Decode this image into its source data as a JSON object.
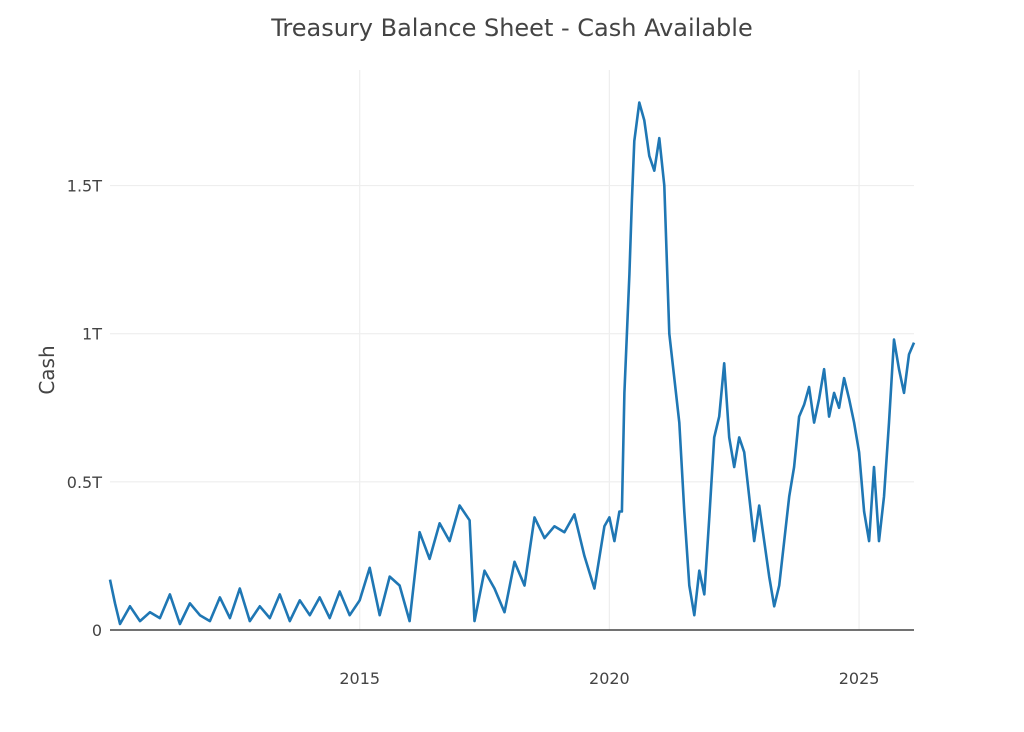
{
  "chart_data": {
    "type": "line",
    "title": "Treasury Balance Sheet - Cash Available",
    "xlabel": "",
    "ylabel": "Cash",
    "xlim": [
      2010.0,
      2026.1
    ],
    "ylim": [
      -0.0001,
      1.89
    ],
    "y_ticks": [
      0,
      0.5,
      1.0,
      1.5
    ],
    "y_tick_labels": [
      "0",
      "0.5T",
      "1T",
      "1.5T"
    ],
    "x_ticks": [
      2015,
      2020,
      2025
    ],
    "x_tick_labels": [
      "2015",
      "2020",
      "2025"
    ],
    "grid": true,
    "legend": "none",
    "color": "#1f77b4",
    "series": [
      {
        "x": [
          2010.0,
          2010.1,
          2010.2,
          2010.4,
          2010.6,
          2010.8,
          2011.0,
          2011.2,
          2011.4,
          2011.6,
          2011.8,
          2012.0,
          2012.2,
          2012.4,
          2012.6,
          2012.8,
          2013.0,
          2013.2,
          2013.4,
          2013.6,
          2013.8,
          2014.0,
          2014.2,
          2014.4,
          2014.6,
          2014.8,
          2015.0,
          2015.2,
          2015.4,
          2015.6,
          2015.8,
          2016.0,
          2016.2,
          2016.4,
          2016.6,
          2016.8,
          2017.0,
          2017.2,
          2017.3,
          2017.5,
          2017.7,
          2017.9,
          2018.1,
          2018.3,
          2018.5,
          2018.7,
          2018.9,
          2019.1,
          2019.3,
          2019.5,
          2019.7,
          2019.9,
          2020.0,
          2020.1,
          2020.2,
          2020.25,
          2020.3,
          2020.35,
          2020.4,
          2020.45,
          2020.5,
          2020.6,
          2020.7,
          2020.8,
          2020.9,
          2021.0,
          2021.1,
          2021.2,
          2021.3,
          2021.4,
          2021.5,
          2021.6,
          2021.7,
          2021.8,
          2021.9,
          2022.0,
          2022.1,
          2022.2,
          2022.3,
          2022.4,
          2022.5,
          2022.6,
          2022.7,
          2022.8,
          2022.9,
          2023.0,
          2023.1,
          2023.2,
          2023.3,
          2023.4,
          2023.5,
          2023.6,
          2023.7,
          2023.8,
          2023.9,
          2024.0,
          2024.1,
          2024.2,
          2024.3,
          2024.4,
          2024.5,
          2024.6,
          2024.7,
          2024.8,
          2024.9,
          2025.0,
          2025.1,
          2025.2,
          2025.3,
          2025.4,
          2025.5,
          2025.6,
          2025.7,
          2025.8,
          2025.9,
          2026.0,
          2026.1
        ],
        "y": [
          0.17,
          0.09,
          0.02,
          0.08,
          0.03,
          0.06,
          0.04,
          0.12,
          0.02,
          0.09,
          0.05,
          0.03,
          0.11,
          0.04,
          0.14,
          0.03,
          0.08,
          0.04,
          0.12,
          0.03,
          0.1,
          0.05,
          0.11,
          0.04,
          0.13,
          0.05,
          0.1,
          0.21,
          0.05,
          0.18,
          0.15,
          0.03,
          0.33,
          0.24,
          0.36,
          0.3,
          0.42,
          0.37,
          0.03,
          0.2,
          0.14,
          0.06,
          0.23,
          0.15,
          0.38,
          0.31,
          0.35,
          0.33,
          0.39,
          0.25,
          0.14,
          0.35,
          0.38,
          0.3,
          0.4,
          0.4,
          0.8,
          1.0,
          1.2,
          1.45,
          1.65,
          1.78,
          1.72,
          1.6,
          1.55,
          1.66,
          1.5,
          1.0,
          0.85,
          0.7,
          0.4,
          0.15,
          0.05,
          0.2,
          0.12,
          0.38,
          0.65,
          0.72,
          0.9,
          0.65,
          0.55,
          0.65,
          0.6,
          0.45,
          0.3,
          0.42,
          0.3,
          0.18,
          0.08,
          0.15,
          0.3,
          0.45,
          0.55,
          0.72,
          0.76,
          0.82,
          0.7,
          0.78,
          0.88,
          0.72,
          0.8,
          0.75,
          0.85,
          0.78,
          0.7,
          0.6,
          0.4,
          0.3,
          0.55,
          0.3,
          0.45,
          0.7,
          0.98,
          0.88,
          0.8,
          0.93,
          0.97
        ]
      }
    ]
  }
}
